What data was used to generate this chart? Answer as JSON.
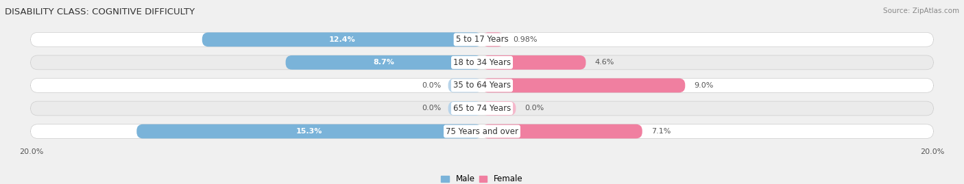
{
  "title": "DISABILITY CLASS: COGNITIVE DIFFICULTY",
  "source": "Source: ZipAtlas.com",
  "categories": [
    "5 to 17 Years",
    "18 to 34 Years",
    "35 to 64 Years",
    "65 to 74 Years",
    "75 Years and over"
  ],
  "male_values": [
    12.4,
    8.7,
    0.0,
    0.0,
    15.3
  ],
  "female_values": [
    0.98,
    4.6,
    9.0,
    0.0,
    7.1
  ],
  "male_color": "#7ab3d9",
  "female_color": "#f07fa0",
  "male_stub_color": "#b8d4ea",
  "female_stub_color": "#f5b8cb",
  "max_val": 20.0,
  "axis_label_left": "20.0%",
  "axis_label_right": "20.0%",
  "bar_height": 0.62,
  "background_color": "#f0f0f0",
  "row_bg_color": "#e8e8e8",
  "row_colors": [
    "#ffffff",
    "#ebebeb"
  ],
  "row_inner_color": "#f5f5f5",
  "title_fontsize": 9.5,
  "label_fontsize": 8,
  "category_fontsize": 8.5,
  "source_fontsize": 7.5,
  "legend_fontsize": 8.5
}
